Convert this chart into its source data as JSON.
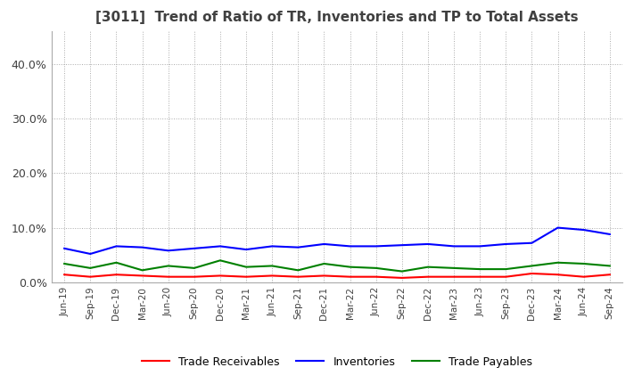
{
  "title": "[3011]  Trend of Ratio of TR, Inventories and TP to Total Assets",
  "dates": [
    "Jun-19",
    "Sep-19",
    "Dec-19",
    "Mar-20",
    "Jun-20",
    "Sep-20",
    "Dec-20",
    "Mar-21",
    "Jun-21",
    "Sep-21",
    "Dec-21",
    "Mar-22",
    "Jun-22",
    "Sep-22",
    "Dec-22",
    "Mar-23",
    "Jun-23",
    "Sep-23",
    "Dec-23",
    "Mar-24",
    "Jun-24",
    "Sep-24"
  ],
  "trade_receivables": [
    0.014,
    0.01,
    0.014,
    0.012,
    0.01,
    0.01,
    0.012,
    0.01,
    0.012,
    0.01,
    0.012,
    0.01,
    0.01,
    0.008,
    0.01,
    0.01,
    0.01,
    0.01,
    0.016,
    0.014,
    0.01,
    0.014
  ],
  "inventories": [
    0.062,
    0.052,
    0.066,
    0.064,
    0.058,
    0.062,
    0.066,
    0.06,
    0.066,
    0.064,
    0.07,
    0.066,
    0.066,
    0.068,
    0.07,
    0.066,
    0.066,
    0.07,
    0.072,
    0.1,
    0.096,
    0.088
  ],
  "trade_payables": [
    0.034,
    0.026,
    0.036,
    0.022,
    0.03,
    0.026,
    0.04,
    0.028,
    0.03,
    0.022,
    0.034,
    0.028,
    0.026,
    0.02,
    0.028,
    0.026,
    0.024,
    0.024,
    0.03,
    0.036,
    0.034,
    0.03
  ],
  "ylim": [
    0.0,
    0.46
  ],
  "yticks": [
    0.0,
    0.1,
    0.2,
    0.3,
    0.4
  ],
  "ytick_labels": [
    "0.0%",
    "10.0%",
    "20.0%",
    "30.0%",
    "40.0%"
  ],
  "colors": {
    "trade_receivables": "#ff0000",
    "inventories": "#0000ff",
    "trade_payables": "#008000"
  },
  "legend_labels": [
    "Trade Receivables",
    "Inventories",
    "Trade Payables"
  ],
  "background_color": "#ffffff",
  "grid_color": "#aaaaaa",
  "title_color": "#404040",
  "title_fontsize": 11
}
